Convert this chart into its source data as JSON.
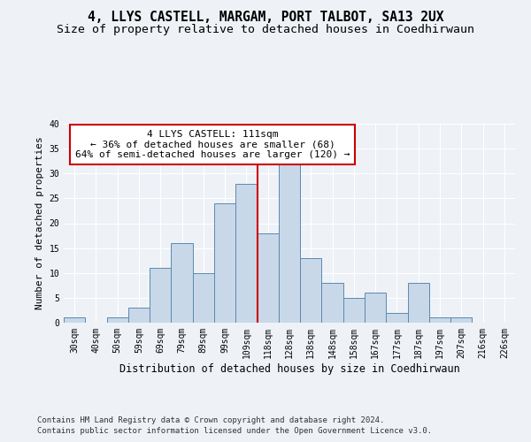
{
  "title": "4, LLYS CASTELL, MARGAM, PORT TALBOT, SA13 2UX",
  "subtitle": "Size of property relative to detached houses in Coedhirwaun",
  "xlabel": "Distribution of detached houses by size in Coedhirwaun",
  "ylabel": "Number of detached properties",
  "categories": [
    "30sqm",
    "40sqm",
    "50sqm",
    "59sqm",
    "69sqm",
    "79sqm",
    "89sqm",
    "99sqm",
    "109sqm",
    "118sqm",
    "128sqm",
    "138sqm",
    "148sqm",
    "158sqm",
    "167sqm",
    "177sqm",
    "187sqm",
    "197sqm",
    "207sqm",
    "216sqm",
    "226sqm"
  ],
  "values": [
    1,
    0,
    1,
    3,
    11,
    16,
    10,
    24,
    28,
    18,
    32,
    13,
    8,
    5,
    6,
    2,
    8,
    1,
    1,
    0,
    0
  ],
  "bar_color": "#c8d8e8",
  "bar_edge_color": "#5a8ab0",
  "vline_x": 8.5,
  "vline_color": "#cc0000",
  "annotation_title": "4 LLYS CASTELL: 111sqm",
  "annotation_line1": "← 36% of detached houses are smaller (68)",
  "annotation_line2": "64% of semi-detached houses are larger (120) →",
  "annotation_box_color": "#ffffff",
  "annotation_box_edge_color": "#cc0000",
  "ylim": [
    0,
    40
  ],
  "yticks": [
    0,
    5,
    10,
    15,
    20,
    25,
    30,
    35,
    40
  ],
  "footer1": "Contains HM Land Registry data © Crown copyright and database right 2024.",
  "footer2": "Contains public sector information licensed under the Open Government Licence v3.0.",
  "bg_color": "#eef2f7",
  "grid_color": "#ffffff",
  "title_fontsize": 10.5,
  "subtitle_fontsize": 9.5,
  "xlabel_fontsize": 8.5,
  "ylabel_fontsize": 8,
  "tick_fontsize": 7,
  "footer_fontsize": 6.5,
  "annotation_fontsize": 8
}
